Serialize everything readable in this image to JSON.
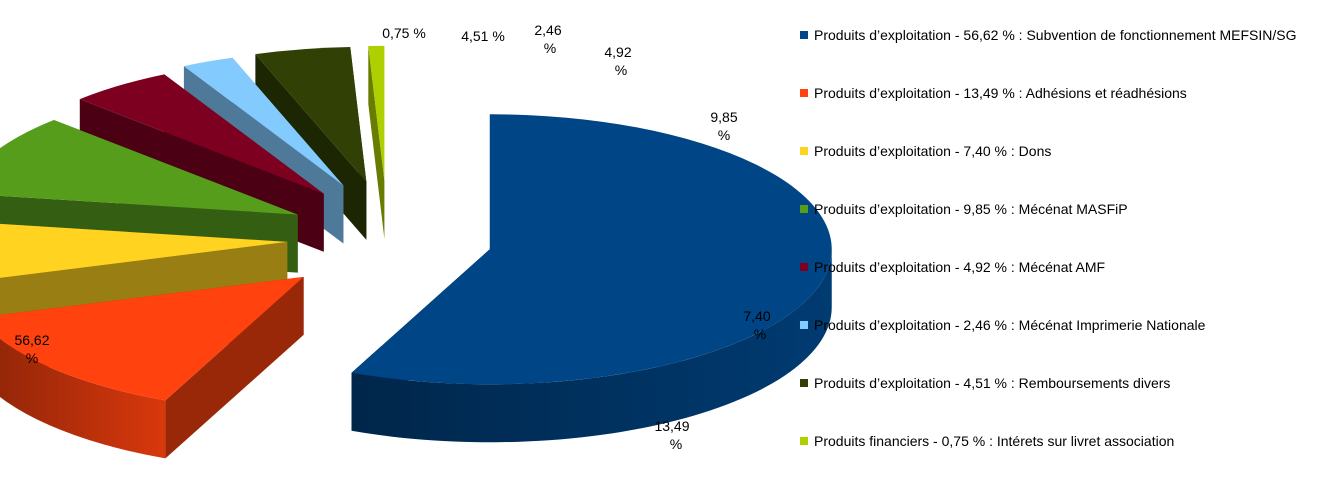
{
  "chart_data": {
    "type": "pie",
    "slices": [
      {
        "label": "Produits d’exploitation  - 56,62 % : Subvention de fonctionnement MEFSIN/SG",
        "value": 56.62,
        "data_label": [
          "56,62",
          "%"
        ],
        "color": "#004586"
      },
      {
        "label": "Produits d’exploitation  - 13,49 % : Adhésions et réadhésions",
        "value": 13.49,
        "data_label": [
          "13,49",
          "%"
        ],
        "color": "#ff420e"
      },
      {
        "label": "Produits d’exploitation  - 7,40 % : Dons",
        "value": 7.4,
        "data_label": [
          "7,40",
          "%"
        ],
        "color": "#ffd320"
      },
      {
        "label": "Produits d’exploitation  - 9,85 % : Mécénat MASFiP",
        "value": 9.85,
        "data_label": [
          "9,85",
          "%"
        ],
        "color": "#579d1c"
      },
      {
        "label": "Produits d’exploitation  - 4,92 % : Mécénat AMF",
        "value": 4.92,
        "data_label": [
          "4,92",
          "%"
        ],
        "color": "#7e0021"
      },
      {
        "label": "Produits d’exploitation  - 2,46 % : Mécénat Imprimerie Nationale",
        "value": 2.46,
        "data_label": [
          "2,46",
          "%"
        ],
        "color": "#83caff"
      },
      {
        "label": "Produits d’exploitation  - 4,51 % : Remboursements divers",
        "value": 4.51,
        "data_label": [
          "4,51 %"
        ],
        "color": "#314004"
      },
      {
        "label": "Produits financiers  - 0,75 % : Intérets sur livret association",
        "value": 0.75,
        "data_label": [
          "0,75 %"
        ],
        "color": "#aecf00"
      }
    ],
    "legend_position": "right",
    "exploded": true,
    "three_d": true
  }
}
